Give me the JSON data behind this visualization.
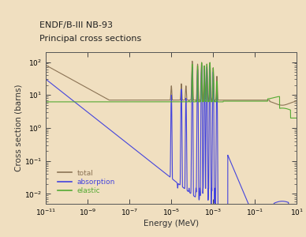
{
  "title_line1": "ENDF/B-III NB-93",
  "title_line2": "Principal cross sections",
  "xlabel": "Energy (MeV)",
  "ylabel": "Cross section (barns)",
  "bg_color": "#f0dfc0",
  "plot_bg_color": "#f0dfc0",
  "xlim": [
    -11,
    1
  ],
  "ylim": [
    -2.3,
    2.3
  ],
  "legend": [
    "total",
    "absorption",
    "elastic"
  ],
  "line_colors": [
    "#8b7355",
    "#4444dd",
    "#55aa33"
  ],
  "figsize": [
    3.88,
    3.0
  ],
  "dpi": 100
}
